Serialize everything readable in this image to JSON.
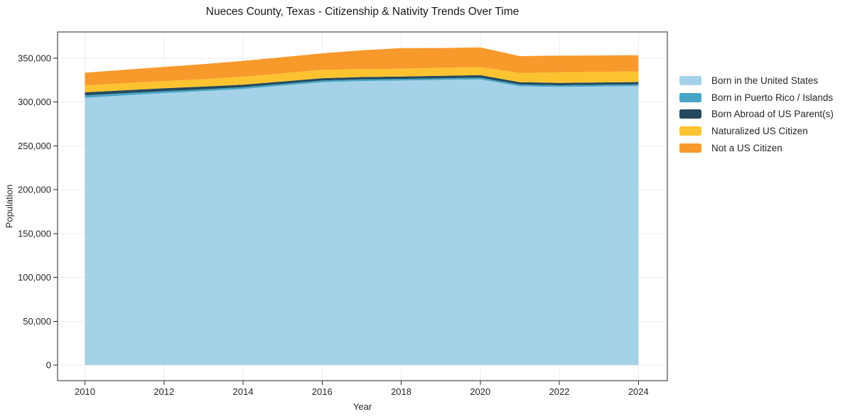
{
  "chart_data": {
    "type": "area",
    "stacked": true,
    "title": "Nueces County, Texas - Citizenship & Nativity Trends Over Time",
    "xlabel": "Year",
    "ylabel": "Population",
    "grid": true,
    "legend_position": "right-outside",
    "x": [
      2010,
      2011,
      2012,
      2013,
      2014,
      2015,
      2016,
      2017,
      2018,
      2019,
      2020,
      2021,
      2022,
      2023,
      2024
    ],
    "xticks": [
      2010,
      2012,
      2014,
      2016,
      2018,
      2020,
      2022,
      2024
    ],
    "yticks": [
      0,
      50000,
      100000,
      150000,
      200000,
      250000,
      300000,
      350000
    ],
    "xlim": [
      2009.3,
      2024.7
    ],
    "ylim": [
      -18200,
      382000
    ],
    "series": [
      {
        "name": "Born in the United States",
        "color": "#a5d2e8",
        "values": [
          304900,
          307600,
          310200,
          312500,
          315000,
          318800,
          322700,
          324000,
          324600,
          325300,
          325900,
          318100,
          317300,
          317800,
          318300
        ]
      },
      {
        "name": "Born in Puerto Rico / Islands",
        "color": "#47a4c5",
        "values": [
          2700,
          2450,
          2200,
          2050,
          2000,
          1950,
          1900,
          1850,
          1800,
          1850,
          1900,
          1900,
          1900,
          1900,
          1900
        ]
      },
      {
        "name": "Born Abroad of US Parent(s)",
        "color": "#234a5e",
        "values": [
          3500,
          3400,
          3300,
          3100,
          2900,
          2750,
          2600,
          2650,
          2700,
          2800,
          2900,
          2700,
          2700,
          2700,
          2700
        ]
      },
      {
        "name": "Naturalized US Citizen",
        "color": "#fcc330",
        "values": [
          8100,
          8100,
          8100,
          8500,
          9000,
          9250,
          9500,
          9200,
          8900,
          9100,
          9300,
          10500,
          12100,
          12100,
          12100
        ]
      },
      {
        "name": "Not a US Citizen",
        "color": "#f8992c",
        "values": [
          14300,
          15250,
          16200,
          17100,
          18000,
          18450,
          18900,
          21300,
          23600,
          22650,
          22400,
          19200,
          18900,
          18700,
          18500
        ]
      }
    ],
    "colors": {
      "grid": "#ededed",
      "spine": "#262626",
      "tick_text": "#262626"
    }
  }
}
